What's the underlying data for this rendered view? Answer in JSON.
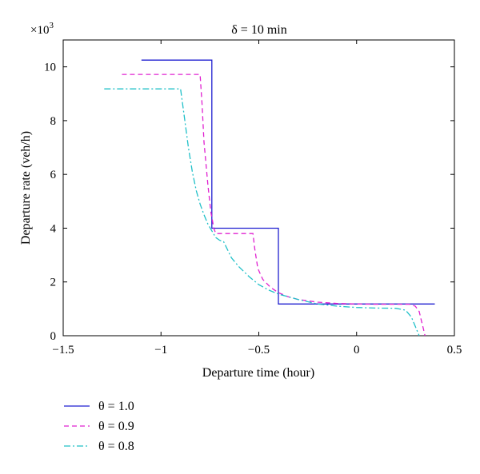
{
  "chart_data": {
    "type": "line",
    "title": "δ = 10 min",
    "xlabel": "Departure time (hour)",
    "ylabel": "Departure rate (veh/h)",
    "y_multiplier_label": "×10",
    "y_multiplier_exponent": "3",
    "xlim": [
      -1.5,
      0.5
    ],
    "ylim": [
      0,
      11
    ],
    "xticks": [
      -1.5,
      -1,
      -0.5,
      0,
      0.5
    ],
    "xtick_labels": [
      "−1.5",
      "−1",
      "−0.5",
      "0",
      "0.5"
    ],
    "yticks": [
      0,
      2,
      4,
      6,
      8,
      10
    ],
    "ytick_labels": [
      "0",
      "2",
      "4",
      "6",
      "8",
      "10"
    ],
    "grid": false,
    "legend_position": "below-left",
    "series": [
      {
        "name": "θ = 1.0",
        "color": "#1f1fd0",
        "style": "solid",
        "x": [
          -1.1,
          -0.74,
          -0.74,
          -0.4,
          -0.4,
          0.4
        ],
        "y": [
          10.25,
          10.25,
          4.0,
          4.0,
          1.18,
          1.18
        ]
      },
      {
        "name": "θ = 0.9",
        "color": "#e020d0",
        "style": "dashed",
        "x": [
          -1.2,
          -0.8,
          -0.79,
          -0.78,
          -0.76,
          -0.745,
          -0.73,
          -0.72,
          -0.53,
          -0.52,
          -0.505,
          -0.48,
          -0.44,
          -0.4,
          -0.35,
          -0.3,
          -0.2,
          -0.1,
          0.0,
          0.1,
          0.2,
          0.27,
          0.3,
          0.32,
          0.33,
          0.34,
          0.35
        ],
        "y": [
          9.72,
          9.72,
          8.6,
          7.2,
          5.6,
          4.6,
          4.0,
          3.8,
          3.8,
          3.2,
          2.5,
          2.1,
          1.8,
          1.6,
          1.45,
          1.35,
          1.25,
          1.2,
          1.18,
          1.17,
          1.17,
          1.17,
          1.1,
          0.9,
          0.6,
          0.3,
          0.0
        ]
      },
      {
        "name": "θ = 0.8",
        "color": "#20c0c8",
        "style": "dashdot",
        "x": [
          -1.29,
          -0.9,
          -0.88,
          -0.86,
          -0.84,
          -0.82,
          -0.8,
          -0.78,
          -0.76,
          -0.74,
          -0.72,
          -0.7,
          -0.68,
          -0.66,
          -0.64,
          -0.6,
          -0.55,
          -0.5,
          -0.45,
          -0.4,
          -0.3,
          -0.2,
          -0.1,
          0.0,
          0.1,
          0.2,
          0.25,
          0.28,
          0.3,
          0.32
        ],
        "y": [
          9.18,
          9.18,
          8.1,
          7.0,
          6.1,
          5.4,
          4.9,
          4.5,
          4.15,
          3.9,
          3.65,
          3.55,
          3.5,
          3.2,
          2.9,
          2.55,
          2.2,
          1.9,
          1.7,
          1.55,
          1.35,
          1.18,
          1.1,
          1.05,
          1.03,
          1.02,
          0.95,
          0.7,
          0.35,
          0.0
        ]
      }
    ]
  }
}
